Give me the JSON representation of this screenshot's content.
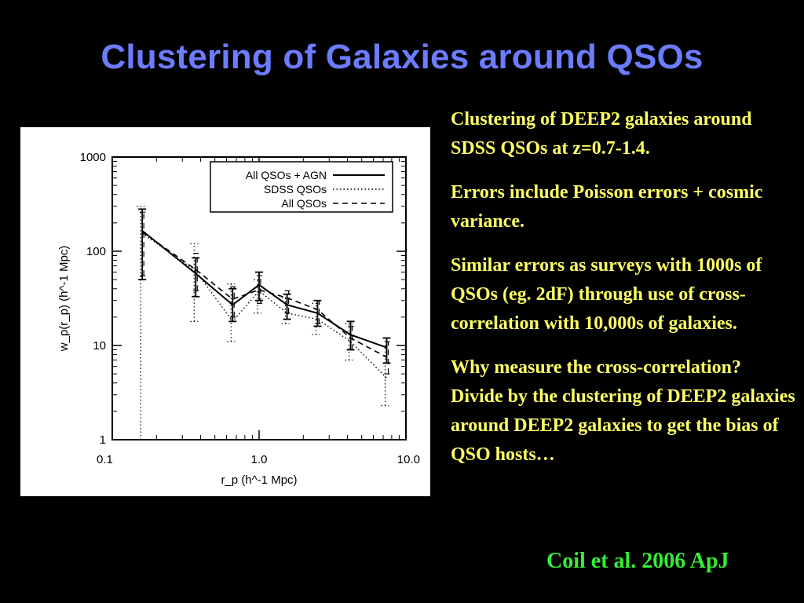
{
  "slide": {
    "title": "Clustering of Galaxies around QSOs",
    "bullets": [
      "Clustering of DEEP2 galaxies around SDSS QSOs at z=0.7-1.4.",
      "Errors include Poisson errors + cosmic variance.",
      "Similar errors as surveys with 1000s of QSOs (eg. 2dF) through use of cross-correlation with 10,000s of galaxies.",
      "Why measure the cross-correlation?  Divide by the clustering of DEEP2 galaxies around DEEP2 galaxies to get the bias of QSO hosts…"
    ],
    "citation": "Coil et al. 2006 ApJ"
  },
  "chart_data": {
    "type": "line",
    "xlabel": "r_p (h^-1 Mpc)",
    "ylabel": "w_p(r_p) (h^-1 Mpc)",
    "x_scale": "log",
    "y_scale": "log",
    "xlim": [
      0.1,
      10.0
    ],
    "ylim": [
      1,
      1000
    ],
    "xticks": [
      0.1,
      1.0,
      10.0
    ],
    "xtick_labels": [
      "0.1",
      "1.0",
      "10.0"
    ],
    "yticks": [
      1,
      10,
      100,
      1000
    ],
    "ytick_labels": [
      "1",
      "10",
      "100",
      "1000"
    ],
    "grid": false,
    "legend_position": "top-right",
    "series": [
      {
        "name": "All QSOs + AGN",
        "style": "solid",
        "x": [
          0.16,
          0.37,
          0.66,
          1.0,
          1.55,
          2.5,
          4.2,
          7.4
        ],
        "y": [
          165,
          58,
          27,
          44,
          27,
          22,
          13,
          9.5
        ],
        "yerr_low": [
          50,
          33,
          18,
          30,
          19,
          16,
          9,
          6.5
        ],
        "yerr_high": [
          280,
          85,
          40,
          60,
          35,
          30,
          18,
          12
        ]
      },
      {
        "name": "SDSS QSOs",
        "style": "dotted",
        "x": [
          0.16,
          0.37,
          0.66,
          1.0,
          1.55,
          2.5,
          4.2,
          7.4
        ],
        "y": [
          155,
          62,
          18,
          38,
          22,
          19,
          11,
          4.5
        ],
        "yerr_low": [
          1,
          18,
          11,
          22,
          17,
          13,
          7,
          2.3
        ],
        "yerr_high": [
          300,
          120,
          45,
          50,
          32,
          28,
          17,
          10
        ]
      },
      {
        "name": "All QSOs",
        "style": "dashed",
        "x": [
          0.16,
          0.37,
          0.66,
          1.0,
          1.55,
          2.5,
          4.2,
          7.4
        ],
        "y": [
          160,
          64,
          31,
          39,
          32,
          24,
          12,
          7.5
        ],
        "yerr_low": [
          55,
          38,
          20,
          28,
          22,
          17,
          9,
          5
        ],
        "yerr_high": [
          260,
          95,
          42,
          55,
          38,
          30,
          16,
          11
        ]
      }
    ]
  }
}
